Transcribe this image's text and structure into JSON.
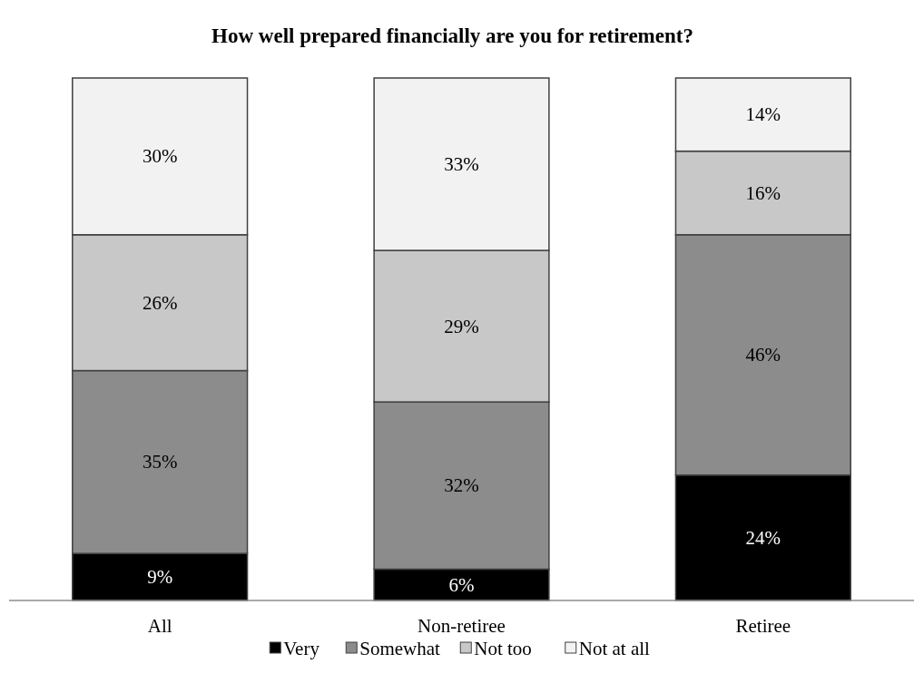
{
  "chart_data": {
    "type": "bar",
    "title": "How well prepared financially are you for retirement?",
    "categories": [
      "All",
      "Non-retiree",
      "Retiree"
    ],
    "stacked": true,
    "legend": "bottom",
    "series": [
      {
        "name": "Very",
        "color": "#000000",
        "values": [
          9,
          6,
          24
        ],
        "value_labels": [
          "9%",
          "6%",
          "24%"
        ]
      },
      {
        "name": "Somewhat",
        "color": "#8c8c8c",
        "values": [
          35,
          32,
          46
        ],
        "value_labels": [
          "35%",
          "32%",
          "46%"
        ]
      },
      {
        "name": "Not too",
        "color": "#c8c8c8",
        "values": [
          26,
          29,
          16
        ],
        "value_labels": [
          "26%",
          "29%",
          "16%"
        ]
      },
      {
        "name": "Not at all",
        "color": "#f2f2f2",
        "values": [
          30,
          33,
          14
        ],
        "value_labels": [
          "30%",
          "33%",
          "14%"
        ]
      }
    ]
  }
}
